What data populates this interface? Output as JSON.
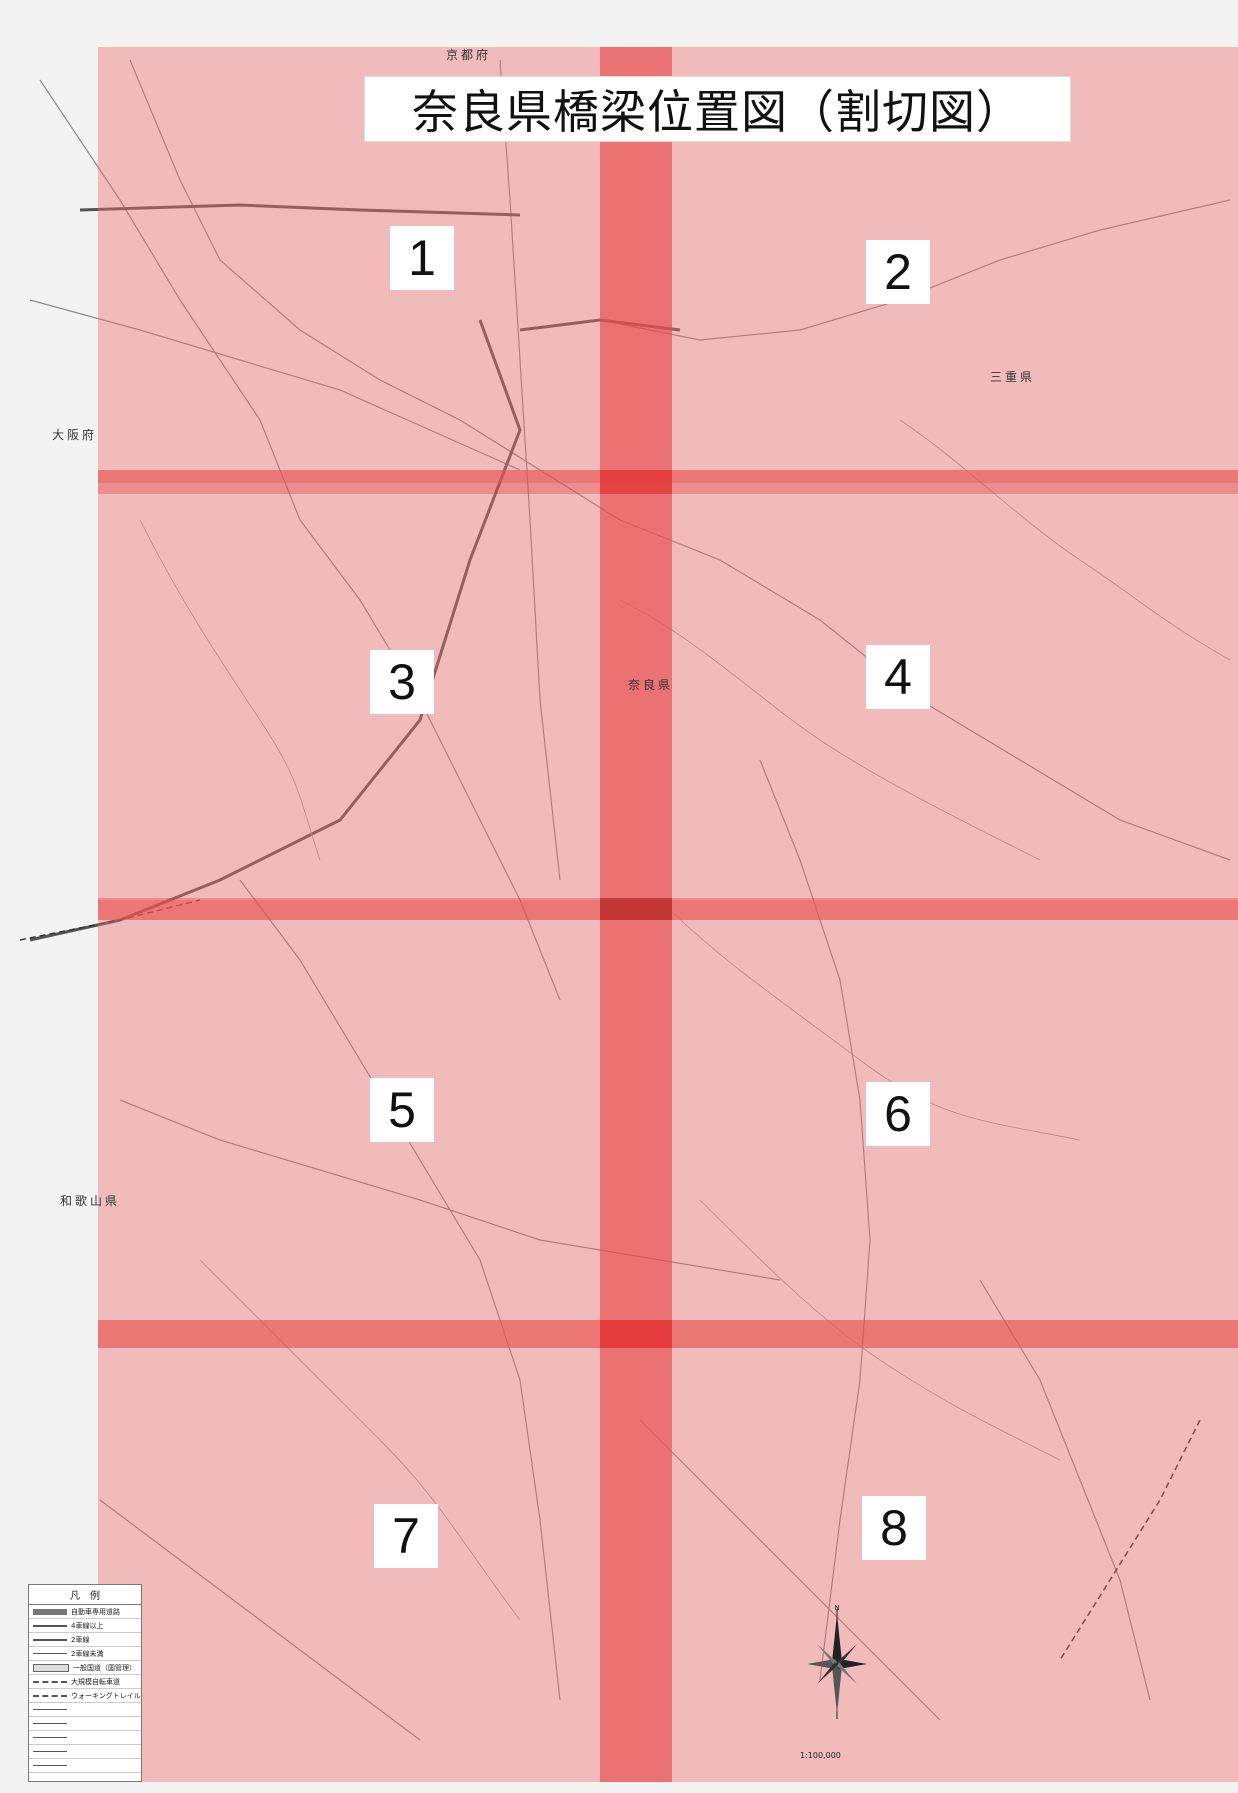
{
  "title": "奈良県橋梁位置図（割切図）",
  "grid_labels": [
    "1",
    "2",
    "3",
    "4",
    "5",
    "6",
    "7",
    "8"
  ],
  "prefectures": {
    "kyoto": "京都府",
    "osaka": "大阪府",
    "mie": "三重県",
    "nara": "奈良県",
    "wakayama": "和歌山県"
  },
  "scale": "1:100,000",
  "legend": {
    "title": "凡　例",
    "items": [
      "自動車専用道路",
      "4車線以上",
      "2車線",
      "2車線未満",
      "一般国道（国管理）",
      "大規模自転車道",
      "ウォーキングトレイル"
    ]
  },
  "colors": {
    "cell_fill": "#f06e6e",
    "overlap_fill": "#e13737",
    "map_base": "#f4f4f4"
  }
}
